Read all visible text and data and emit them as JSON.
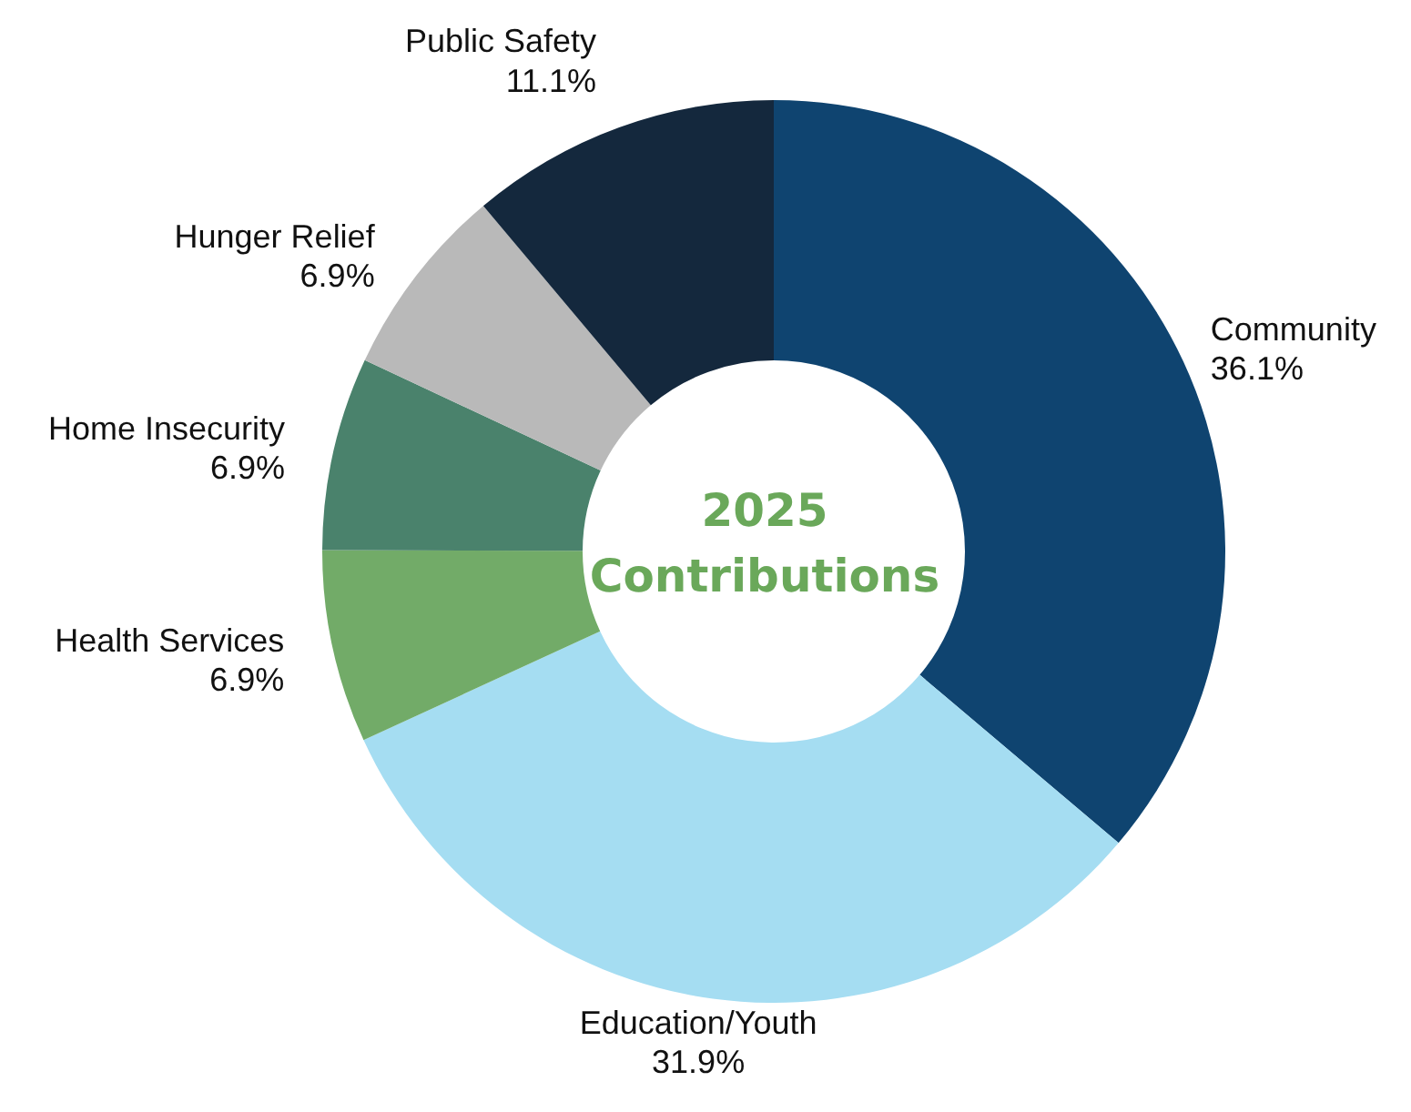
{
  "chart_data": {
    "type": "donut",
    "title": "2025 Contributions",
    "categories": [
      "Community",
      "Education/Youth",
      "Health Services",
      "Home Insecurity",
      "Hunger Relief",
      "Public Safety"
    ],
    "values": [
      36.1,
      31.9,
      6.9,
      6.9,
      6.9,
      11.1
    ],
    "value_labels": [
      "36.1%",
      "31.9%",
      "6.9%",
      "6.9%",
      "6.9%",
      "11.1%"
    ],
    "colors": [
      "#0f4470",
      "#a5ddf2",
      "#72ab68",
      "#4a826c",
      "#b9b9b9",
      "#14283d"
    ],
    "legend": false
  }
}
